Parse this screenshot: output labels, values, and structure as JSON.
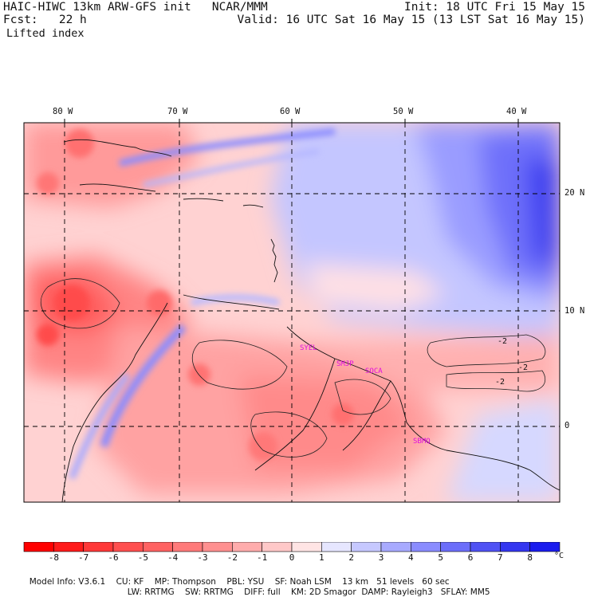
{
  "header": {
    "model_line": "HAIC-HIWC 13km ARW-GFS init   NCAR/MMM",
    "init_line": "Init: 18 UTC Fri 15 May 15",
    "fcst_line": "Fcst:   22 h",
    "valid_line": "Valid: 16 UTC Sat 16 May 15 (13 LST Sat 16 May 15)",
    "field_name": "Lifted index"
  },
  "map": {
    "lon_labels": [
      "80 W",
      "70 W",
      "60 W",
      "50 W",
      "40 W"
    ],
    "lat_labels": [
      "20 N",
      "10 N",
      "0"
    ],
    "stations": [
      "SYEL",
      "SMJP",
      "SOCA",
      "SBMQ"
    ],
    "contour_labels": [
      "-2",
      "-2",
      "-2"
    ]
  },
  "colorbar": {
    "ticks": [
      "-8",
      "-7",
      "-6",
      "-5",
      "-4",
      "-3",
      "-2",
      "-1",
      "0",
      "1",
      "2",
      "3",
      "4",
      "5",
      "6",
      "7",
      "8"
    ],
    "unit": "°C",
    "colors": [
      "#ff1a1a",
      "#ff3838",
      "#ff4f4f",
      "#ff6262",
      "#ff7a7a",
      "#ff9090",
      "#ffacac",
      "#ffc8c8",
      "#ffe4e4",
      "#e6e6ff",
      "#c6c8ff",
      "#a8aaff",
      "#8a8cff",
      "#6c6efa",
      "#5052f4",
      "#3436f0",
      "#1a1cee"
    ]
  },
  "footer": {
    "line1": [
      "Model Info: V3.6.1",
      "CU: KF",
      "MP: Thompson",
      "PBL: YSU",
      "SF: Noah LSM",
      "13 km",
      "51 levels",
      "60 sec"
    ],
    "line2": [
      "LW: RRTMG",
      "SW: RRTMG",
      "DIFF: full",
      "KM: 2D Smagor",
      "DAMP: Rayleigh3",
      "SFLAY: MM5"
    ]
  }
}
